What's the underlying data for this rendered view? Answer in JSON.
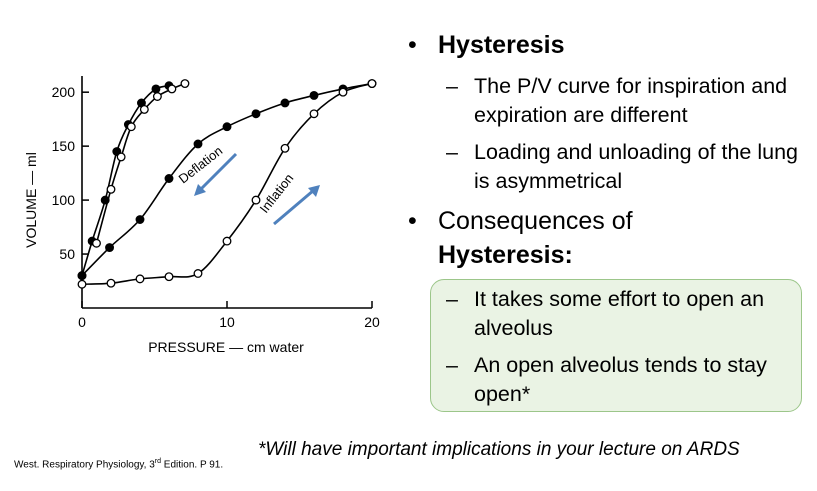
{
  "chart_data": {
    "type": "scatter",
    "xlabel": "PRESSURE — cm water",
    "ylabel": "VOLUME — ml",
    "xlim": [
      0,
      20
    ],
    "ylim": [
      0,
      215
    ],
    "x_ticks": [
      0,
      10,
      20
    ],
    "y_ticks": [
      50,
      100,
      150,
      200
    ],
    "x_tick_labels": [
      "0",
      "10",
      "20"
    ],
    "y_tick_labels": [
      "50",
      "100",
      "150",
      "200"
    ],
    "grid": false,
    "series": [
      {
        "marker": "filled",
        "points": [
          [
            0,
            30
          ],
          [
            0.7,
            62
          ],
          [
            1.6,
            100
          ],
          [
            2.4,
            145
          ],
          [
            3.2,
            170
          ],
          [
            4.1,
            190
          ],
          [
            5.1,
            203
          ],
          [
            6.0,
            206
          ]
        ]
      },
      {
        "marker": "open",
        "points": [
          [
            1,
            60
          ],
          [
            2,
            110
          ],
          [
            2.7,
            140
          ],
          [
            3.4,
            168
          ],
          [
            4.3,
            184
          ],
          [
            5.2,
            196
          ],
          [
            6.2,
            203
          ],
          [
            7.1,
            208
          ]
        ]
      },
      {
        "name": "Deflation",
        "marker": "filled",
        "points": [
          [
            0,
            30
          ],
          [
            1.9,
            56
          ],
          [
            4,
            82
          ],
          [
            6,
            120
          ],
          [
            8,
            152
          ],
          [
            10,
            168
          ],
          [
            12,
            180
          ],
          [
            14,
            190
          ],
          [
            16,
            197
          ],
          [
            18,
            203
          ],
          [
            20,
            208
          ]
        ]
      },
      {
        "name": "Inflation",
        "marker": "open",
        "points": [
          [
            0,
            22
          ],
          [
            2,
            23
          ],
          [
            4,
            27
          ],
          [
            6,
            29
          ],
          [
            8,
            32
          ],
          [
            10,
            62
          ],
          [
            12,
            100
          ],
          [
            14,
            148
          ],
          [
            16,
            180
          ],
          [
            18,
            200
          ],
          [
            20,
            208
          ]
        ]
      }
    ],
    "annotations": [
      "Deflation",
      "Inflation"
    ]
  },
  "bullets": [
    {
      "bold": "Hysteresis",
      "normal": ""
    },
    {
      "text": "The P/V curve for inspiration and expiration are different"
    },
    {
      "text": "Loading and unloading of the lung is asymmetrical"
    },
    {
      "normal": "Consequences of",
      "bold": "Hysteresis:"
    }
  ],
  "bullet_symbol": "•",
  "dash_symbol": "–",
  "box_items": [
    {
      "text": "It takes some effort to open an alveolus"
    },
    {
      "text": "An open alveolus tends to stay open*"
    }
  ],
  "footnote": "*Will have important implications in your lecture on ARDS",
  "source": {
    "main": "West. Respiratory Physiology, 3",
    "sup": "rd",
    "rest": " Edition.  P 91."
  },
  "colors": {
    "box_fill": "#eaf3e4",
    "box_border": "#9cc68a",
    "arrow": "#4f81bd"
  }
}
